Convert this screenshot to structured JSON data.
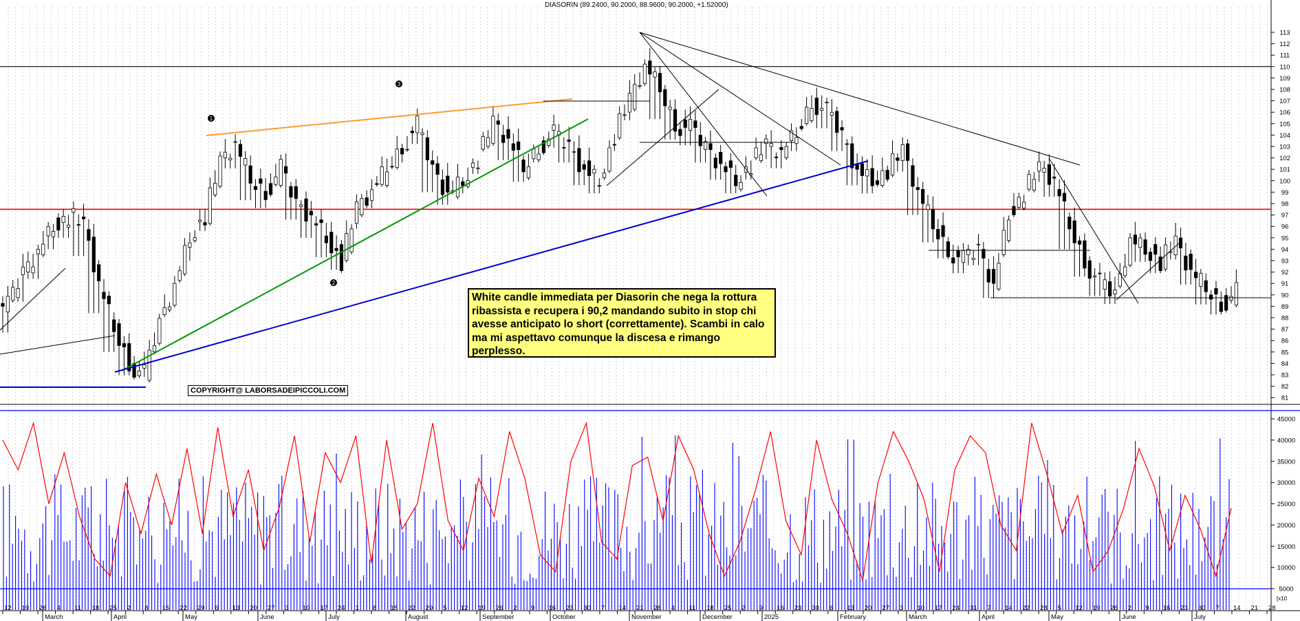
{
  "title": "DIASORIN (89.2400, 90.2000, 88.9600, 90.2000, +1.52000)",
  "copyright": "COPYRIGHT@ LABORSADEIPICCOLI.COM",
  "annotation_text": "White candle immediata per Diasorin che nega la rottura ribassista e recupera i 90,2 mandando subito in stop chi avesse anticipato lo short (correttamente). Scambi in calo ma mi aspettavo comunque la discesa e rimango perplesso.",
  "colors": {
    "support_red": "#ff0000",
    "upper_orange": "#ff9933",
    "trend_green": "#009900",
    "trend_blue": "#0000cc",
    "volume_bar": "#0000ff",
    "volume_line": "#ff0000",
    "grid": "#c8c8c8",
    "annotation_bg": "#ffff80"
  },
  "wave_labels": [
    "1",
    "2",
    "3"
  ],
  "volume_tag": "[x10",
  "chart_data": [
    {
      "type": "candlestick",
      "title": "DIASORIN (89.2400, 90.2000, 88.9600, 90.2000, +1.52000)",
      "ylim": [
        80.5,
        114
      ],
      "ytick_labels": [
        "81",
        "82",
        "83",
        "84",
        "85",
        "86",
        "87",
        "88",
        "89",
        "90",
        "91",
        "92",
        "93",
        "94",
        "95",
        "96",
        "97",
        "98",
        "99",
        "100",
        "101",
        "102",
        "103",
        "104",
        "105",
        "106",
        "107",
        "108",
        "109",
        "110",
        "111",
        "112",
        "113"
      ],
      "horizontal_levels": [
        110.0,
        97.5
      ],
      "x_tick_labels": [
        "12",
        "19",
        "26",
        "4",
        "11",
        "18",
        "25",
        "2",
        "8",
        "15",
        "22",
        "29",
        "6",
        "13",
        "20",
        "27",
        "3",
        "10",
        "17",
        "24",
        "1",
        "8",
        "15",
        "22",
        "29",
        "5",
        "12",
        "19",
        "26",
        "2",
        "9",
        "16",
        "23",
        "30",
        "7",
        "14",
        "21",
        "28",
        "4",
        "11",
        "18",
        "25",
        "2",
        "9",
        "16",
        "23",
        "30",
        "6",
        "13",
        "20",
        "27",
        "3",
        "10",
        "17",
        "24",
        "31",
        "7",
        "14",
        "22",
        "28",
        "5",
        "12",
        "19",
        "26",
        "2",
        "9",
        "16",
        "23",
        "30",
        "7",
        "14",
        "21",
        "28"
      ],
      "month_labels": [
        "March",
        "April",
        "May",
        "June",
        "July",
        "August",
        "September",
        "October",
        "November",
        "December",
        "2025",
        "February",
        "March",
        "April",
        "May",
        "June",
        "July"
      ],
      "close_path": [
        89.0,
        92.0,
        94.0,
        96.0,
        97.0,
        96.0,
        91.0,
        87.0,
        84.0,
        83.0,
        87.5,
        91.0,
        95.0,
        97.0,
        101.5,
        103.2,
        100.0,
        99.0,
        101.0,
        98.0,
        97.0,
        95.0,
        93.0,
        97.5,
        99.0,
        101.0,
        103.0,
        104.8,
        101.0,
        99.0,
        100.0,
        102.0,
        105.0,
        103.5,
        101.0,
        103.0,
        104.0,
        103.0,
        101.0,
        100.0,
        104.0,
        107.0,
        110.0,
        108.0,
        105.0,
        104.5,
        103.0,
        101.5,
        100.0,
        101.5,
        103.0,
        102.5,
        104.0,
        107.0,
        106.0,
        104.0,
        101.0,
        100.0,
        101.0,
        102.5,
        99.0,
        96.0,
        94.0,
        93.0,
        94.0,
        91.0,
        97.0,
        99.0,
        101.0,
        100.0,
        96.0,
        93.0,
        91.0,
        90.0,
        95.0,
        94.0,
        93.0,
        94.5,
        92.0,
        90.5,
        89.2,
        90.2
      ],
      "lows_path": [
        85.5,
        88.0,
        90.0,
        93.0,
        94.0,
        92.0,
        87.0,
        84.0,
        82.6,
        83.0,
        86.0,
        89.0,
        92.0,
        95.0,
        99.0,
        100.0,
        97.5,
        97.0,
        99.0,
        96.0,
        94.0,
        92.5,
        92.0,
        95.0,
        97.0,
        99.5,
        101.0,
        102.5,
        98.0,
        97.5,
        98.5,
        100.0,
        103.0,
        101.0,
        99.5,
        101.0,
        102.5,
        101.0,
        99.0,
        98.5,
        102.0,
        104.5,
        108.0,
        104.0,
        103.0,
        102.5,
        101.0,
        99.5,
        98.5,
        99.5,
        101.5,
        100.5,
        102.0,
        105.0,
        104.0,
        102.0,
        99.0,
        98.5,
        99.5,
        100.0,
        96.0,
        94.0,
        93.0,
        91.5,
        92.0,
        89.2,
        95.0,
        97.5,
        99.5,
        98.0,
        93.0,
        91.0,
        89.5,
        89.0,
        93.0,
        92.5,
        91.5,
        92.5,
        90.5,
        88.6,
        88.0,
        88.96
      ],
      "annotations": [
        "White candle immediata per Diasorin che nega la rottura ribassista e recupera i 90,2 mandando subito in stop chi avesse anticipato lo short (correttamente). Scambi in calo ma mi aspettavo comunque la discesa e rimango perplesso."
      ],
      "volume": {
        "ylim": [
          0,
          48000
        ],
        "ytick_labels": [
          "5000",
          "10000",
          "15000",
          "20000",
          "25000",
          "30000",
          "35000",
          "40000",
          "45000"
        ],
        "ytick_values": [
          5000,
          10000,
          15000,
          20000,
          25000,
          30000,
          35000,
          40000,
          45000
        ],
        "horizontal_level": 5000,
        "average_line": [
          40000,
          33000,
          44000,
          25000,
          37000,
          22000,
          12000,
          8000,
          30000,
          18000,
          32000,
          20000,
          38000,
          18000,
          43000,
          22000,
          33000,
          14000,
          24000,
          41000,
          16000,
          37000,
          30000,
          41000,
          11000,
          40000,
          19000,
          25000,
          44000,
          21000,
          14000,
          31000,
          22000,
          42000,
          31000,
          13000,
          9000,
          35000,
          44000,
          16000,
          12000,
          34000,
          36000,
          21000,
          41000,
          33000,
          18000,
          8000,
          16000,
          28000,
          42000,
          21000,
          13000,
          40000,
          26000,
          18000,
          7000,
          30000,
          42000,
          35000,
          26000,
          9000,
          33000,
          41000,
          37000,
          20000,
          14000,
          44000,
          32000,
          18000,
          27000,
          9000,
          14000,
          24000,
          38000,
          29000,
          14000,
          27000,
          19000,
          8000,
          24000
        ]
      }
    }
  ]
}
